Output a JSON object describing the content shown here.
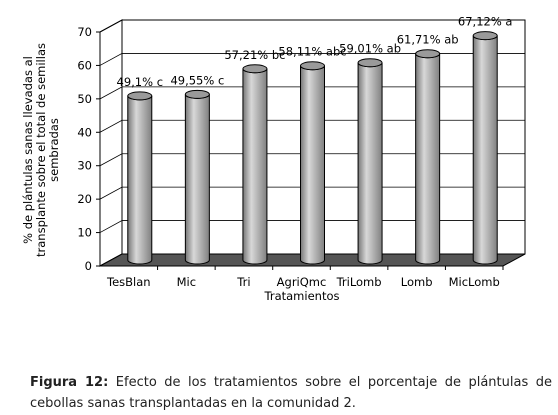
{
  "chart_data": {
    "type": "bar",
    "ylabel": [
      "% de plántulas sanas llevadas al",
      "transplante sobre el total de semillas",
      "sembradas"
    ],
    "xlabel": "Tratamientos",
    "categories": [
      "TesBlan",
      "Mic",
      "Tri",
      "AgriQmc",
      "TriLomb",
      "Lomb",
      "MicLomb"
    ],
    "values": [
      49.1,
      49.55,
      57.21,
      58.11,
      59.01,
      61.71,
      67.12
    ],
    "value_labels": [
      "49,1% c",
      "49,55% c",
      "57,21% bc",
      "58,11% abc",
      "59,01% ab",
      "61,71% ab",
      "67,12% a"
    ],
    "color": "#a8a8a8",
    "ylim": [
      0,
      70
    ],
    "yticks": [
      0,
      10,
      20,
      30,
      40,
      50,
      60,
      70
    ],
    "grid": true
  },
  "caption": {
    "label": "Figura 12:",
    "text": "Efecto de los tratamientos sobre el porcentaje de plántulas de cebollas sanas transplantadas en la comunidad 2."
  }
}
